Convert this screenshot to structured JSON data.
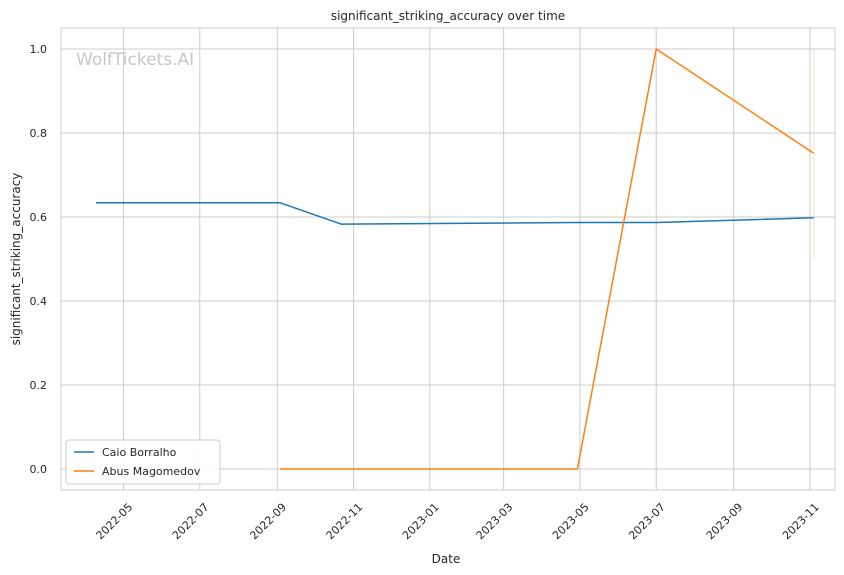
{
  "chart_data": {
    "type": "line",
    "title": "significant_striking_accuracy over time",
    "xlabel": "Date",
    "ylabel": "significant_striking_accuracy",
    "watermark": "WolfTickets.AI",
    "x_range": [
      "2022-03-12",
      "2023-11-21"
    ],
    "ylim": [
      -0.05,
      1.05
    ],
    "x_ticks": [
      "2022-05",
      "2022-07",
      "2022-09",
      "2022-11",
      "2023-01",
      "2023-03",
      "2023-05",
      "2023-07",
      "2023-09",
      "2023-11"
    ],
    "y_ticks": [
      "0.0",
      "0.2",
      "0.4",
      "0.6",
      "0.8",
      "1.0"
    ],
    "grid": true,
    "legend_position": "lower-left",
    "series": [
      {
        "name": "Caio Borralho",
        "color": "#1f77b4",
        "points": [
          {
            "x": "2022-04-09",
            "y": 0.634
          },
          {
            "x": "2022-09-03",
            "y": 0.634
          },
          {
            "x": "2022-10-22",
            "y": 0.583
          },
          {
            "x": "2023-04-29",
            "y": 0.587
          },
          {
            "x": "2023-07-01",
            "y": 0.587
          },
          {
            "x": "2023-11-04",
            "y": 0.598
          }
        ]
      },
      {
        "name": "Abus Magomedov",
        "color": "#ff7f0e",
        "points": [
          {
            "x": "2022-09-03",
            "y": 0.0
          },
          {
            "x": "2023-04-29",
            "y": 0.0
          },
          {
            "x": "2023-07-01",
            "y": 1.0
          },
          {
            "x": "2023-11-04",
            "y": 0.752
          }
        ],
        "error_band": {
          "x": "2023-11-04",
          "low": 0.5,
          "high": 1.0
        }
      }
    ]
  }
}
